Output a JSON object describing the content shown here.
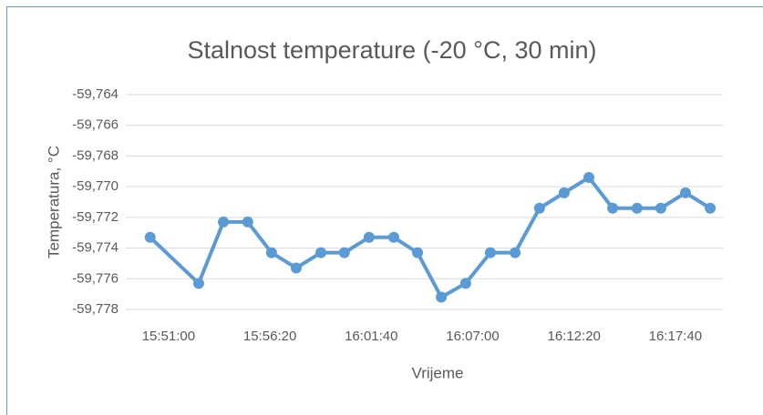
{
  "chart_data": {
    "type": "line",
    "title": "Stalnost temperature (-20 °C, 30 min)",
    "xlabel": "Vrijeme",
    "ylabel": "Temperatura, °C",
    "x": [
      57002,
      57155,
      57233,
      57310,
      57385,
      57463,
      57541,
      57615,
      57693,
      57771,
      57846,
      57921,
      57998,
      58076,
      58154,
      58231,
      58309,
      58387,
      58462,
      58539,
      58614,
      58692,
      58770
    ],
    "series": [
      {
        "name": "Temperatura",
        "color": "#5b9bd5",
        "values": [
          -59.7733,
          -59.7763,
          -59.7723,
          -59.7723,
          -59.7743,
          -59.7753,
          -59.7743,
          -59.7743,
          -59.7733,
          -59.7733,
          -59.7743,
          -59.7772,
          -59.7763,
          -59.7743,
          -59.7743,
          -59.7714,
          -59.7704,
          -59.7694,
          -59.7714,
          -59.7714,
          -59.7714,
          -59.7704,
          -59.7714
        ]
      }
    ],
    "xlim": [
      56925,
      58810
    ],
    "xticks": [
      {
        "value": 57060,
        "label": "15:51:00"
      },
      {
        "value": 57380,
        "label": "15:56:20"
      },
      {
        "value": 57700,
        "label": "16:01:40"
      },
      {
        "value": 58020,
        "label": "16:07:00"
      },
      {
        "value": 58340,
        "label": "16:12:20"
      },
      {
        "value": 58660,
        "label": "16:17:40"
      }
    ],
    "ylim": [
      -59.778,
      -59.764
    ],
    "yticks": [
      {
        "value": -59.778,
        "label": "-59,778"
      },
      {
        "value": -59.776,
        "label": "-59,776"
      },
      {
        "value": -59.774,
        "label": "-59,774"
      },
      {
        "value": -59.772,
        "label": "-59,772"
      },
      {
        "value": -59.77,
        "label": "-59,770"
      },
      {
        "value": -59.768,
        "label": "-59,768"
      },
      {
        "value": -59.766,
        "label": "-59,766"
      },
      {
        "value": -59.764,
        "label": "-59,764"
      }
    ],
    "grid": true
  }
}
